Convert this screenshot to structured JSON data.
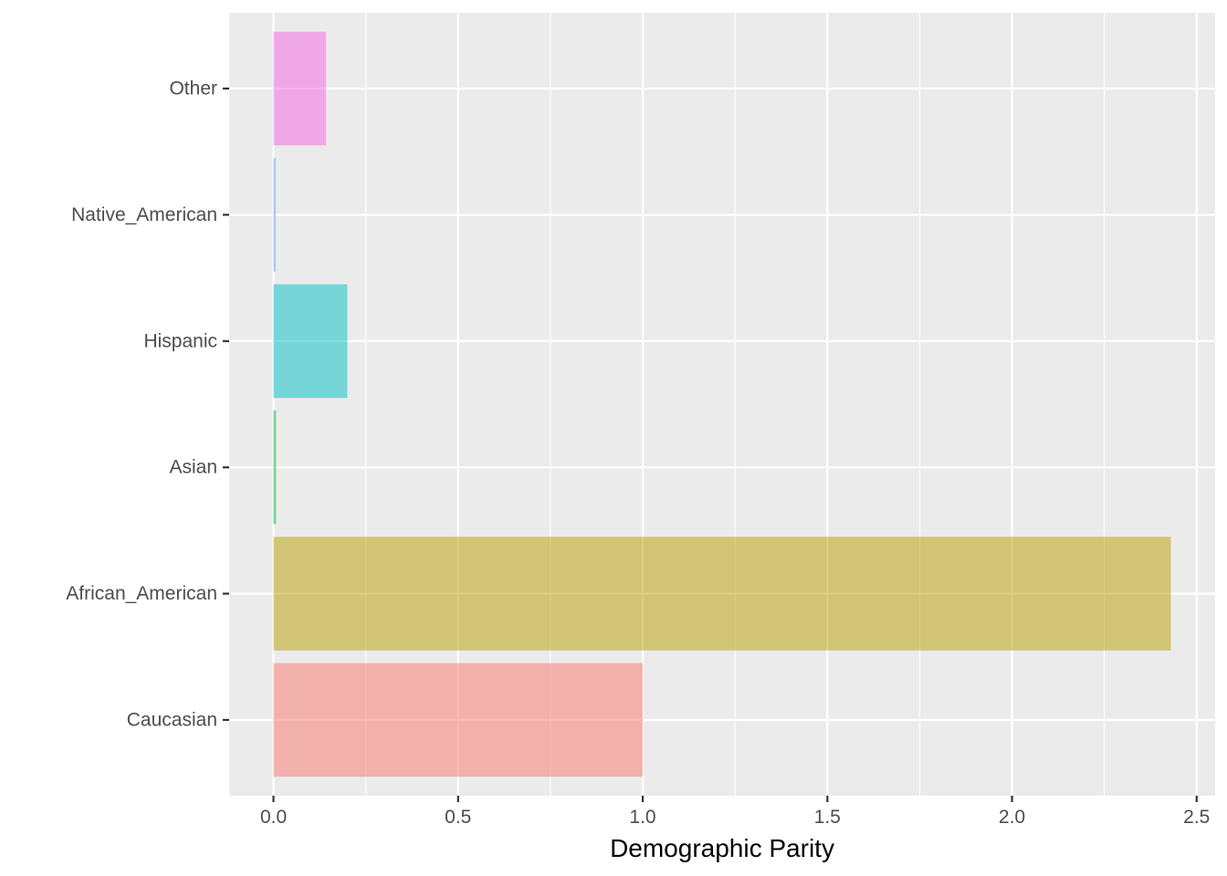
{
  "chart_data": {
    "type": "bar",
    "orientation": "horizontal",
    "categories": [
      "Caucasian",
      "African_American",
      "Asian",
      "Hispanic",
      "Native_American",
      "Other"
    ],
    "values": [
      1.0,
      2.43,
      0.007,
      0.2,
      0.006,
      0.142
    ],
    "colors": [
      "#F8766D",
      "#B79F00",
      "#00BA38",
      "#00BFC4",
      "#619CFF",
      "#F564E3"
    ],
    "xlabel": "Demographic Parity",
    "ylabel": "",
    "xlim": [
      -0.12,
      2.55
    ],
    "xticks": [
      0.0,
      0.5,
      1.0,
      1.5,
      2.0,
      2.5
    ],
    "xtick_labels": [
      "0.0",
      "0.5",
      "1.0",
      "1.5",
      "2.0",
      "2.5"
    ],
    "grid": true,
    "legend": "none",
    "panel_background": "#EBEBEB",
    "grid_color": "#FFFFFF"
  }
}
